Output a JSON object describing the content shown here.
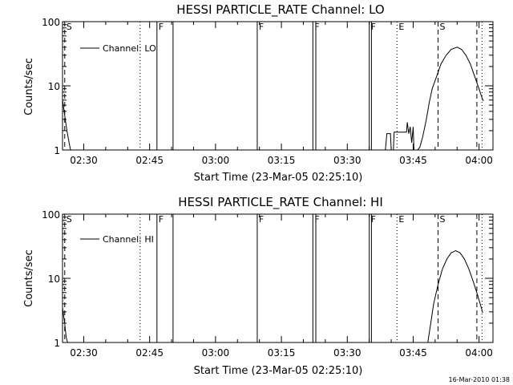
{
  "footer": {
    "timestamp": "16-Mar-2010 01:38"
  },
  "chart_data": [
    {
      "type": "line",
      "title": "HESSI PARTICLE_RATE Channel: LO",
      "xlabel": "Start Time (23-Mar-05 02:25:10)",
      "ylabel": "Counts/sec",
      "yscale": "log",
      "ylim": [
        1,
        100
      ],
      "xlim": [
        "02:25:10",
        "04:03:10"
      ],
      "x_ticks": [
        "02:30",
        "02:45",
        "03:00",
        "03:15",
        "03:30",
        "03:45",
        "04:00"
      ],
      "y_ticks": [
        "1",
        "10",
        "100"
      ],
      "legend": {
        "label": "Channel: LO",
        "position": "top-left"
      },
      "markers": [
        {
          "label": "S",
          "time": "02:25:40",
          "style": "dashed"
        },
        {
          "label": "",
          "time": "02:42:50",
          "style": "dotted"
        },
        {
          "label": "F",
          "time": "02:46:40",
          "style": "solid"
        },
        {
          "label": "",
          "time": "02:50:20",
          "style": "solid"
        },
        {
          "label": "F",
          "time": "03:09:30",
          "style": "solid"
        },
        {
          "label": "F",
          "time": "03:22:10",
          "style": "solid"
        },
        {
          "label": "",
          "time": "03:22:50",
          "style": "solid"
        },
        {
          "label": "F",
          "time": "03:35:00",
          "style": "solid"
        },
        {
          "label": "",
          "time": "03:35:30",
          "style": "solid"
        },
        {
          "label": "E",
          "time": "03:41:20",
          "style": "dotted"
        },
        {
          "label": "S",
          "time": "03:50:40",
          "style": "dashed"
        },
        {
          "label": "",
          "time": "03:59:30",
          "style": "dashed"
        },
        {
          "label": "",
          "time": "04:00:40",
          "style": "dotted"
        }
      ],
      "series": [
        {
          "segments": [
            [
              [
                "02:25:10",
                6
              ],
              [
                "02:25:40",
                3.5
              ],
              [
                "02:26:10",
                2
              ],
              [
                "02:26:40",
                1.3
              ],
              [
                "02:27:00",
                1
              ]
            ],
            [
              [
                "03:38:40",
                1
              ],
              [
                "03:39:00",
                1.8
              ],
              [
                "03:39:50",
                1.8
              ],
              [
                "03:40:00",
                1
              ],
              [
                "03:40:30",
                1
              ],
              [
                "03:40:40",
                1.9
              ],
              [
                "03:43:30",
                1.9
              ],
              [
                "03:43:40",
                2.7
              ],
              [
                "03:44:00",
                1.8
              ],
              [
                "03:44:20",
                2.3
              ],
              [
                "03:44:40",
                1.3
              ],
              [
                "03:45:00",
                2.3
              ],
              [
                "03:45:10",
                1
              ],
              [
                "03:46:00",
                1
              ],
              [
                "03:46:30",
                1.1
              ],
              [
                "03:47:10",
                1.6
              ],
              [
                "03:48:00",
                3
              ],
              [
                "03:48:40",
                5.5
              ],
              [
                "03:49:20",
                9
              ],
              [
                "03:50:20",
                14
              ],
              [
                "03:51:20",
                22
              ],
              [
                "03:52:30",
                30
              ],
              [
                "03:53:40",
                37
              ],
              [
                "03:55:00",
                40
              ],
              [
                "03:56:00",
                37
              ],
              [
                "03:57:00",
                30
              ],
              [
                "03:58:00",
                22
              ],
              [
                "03:59:00",
                14
              ],
              [
                "04:00:00",
                9
              ],
              [
                "04:00:40",
                6.5
              ],
              [
                "04:01:00",
                5.8
              ]
            ]
          ]
        }
      ]
    },
    {
      "type": "line",
      "title": "HESSI PARTICLE_RATE Channel: HI",
      "xlabel": "Start Time (23-Mar-05 02:25:10)",
      "ylabel": "Counts/sec",
      "yscale": "log",
      "ylim": [
        1,
        100
      ],
      "xlim": [
        "02:25:10",
        "04:03:10"
      ],
      "x_ticks": [
        "02:30",
        "02:45",
        "03:00",
        "03:15",
        "03:30",
        "03:45",
        "04:00"
      ],
      "y_ticks": [
        "1",
        "10",
        "100"
      ],
      "legend": {
        "label": "Channel: HI",
        "position": "top-left"
      },
      "markers": [
        {
          "label": "S",
          "time": "02:25:40",
          "style": "dashed"
        },
        {
          "label": "",
          "time": "02:42:50",
          "style": "dotted"
        },
        {
          "label": "F",
          "time": "02:46:40",
          "style": "solid"
        },
        {
          "label": "",
          "time": "02:50:20",
          "style": "solid"
        },
        {
          "label": "F",
          "time": "03:09:30",
          "style": "solid"
        },
        {
          "label": "F",
          "time": "03:22:10",
          "style": "solid"
        },
        {
          "label": "",
          "time": "03:22:50",
          "style": "solid"
        },
        {
          "label": "F",
          "time": "03:35:00",
          "style": "solid"
        },
        {
          "label": "",
          "time": "03:35:30",
          "style": "solid"
        },
        {
          "label": "E",
          "time": "03:41:20",
          "style": "dotted"
        },
        {
          "label": "S",
          "time": "03:50:40",
          "style": "dashed"
        },
        {
          "label": "",
          "time": "03:59:30",
          "style": "dashed"
        },
        {
          "label": "",
          "time": "04:00:40",
          "style": "dotted"
        }
      ],
      "series": [
        {
          "segments": [
            [
              [
                "02:25:10",
                3.5
              ],
              [
                "02:25:40",
                2
              ],
              [
                "02:26:00",
                1.2
              ],
              [
                "02:26:20",
                1
              ]
            ],
            [
              [
                "03:48:20",
                1
              ],
              [
                "03:49:00",
                2
              ],
              [
                "03:49:40",
                4
              ],
              [
                "03:50:40",
                8
              ],
              [
                "03:51:40",
                14
              ],
              [
                "03:52:40",
                20
              ],
              [
                "03:53:40",
                25
              ],
              [
                "03:54:40",
                27
              ],
              [
                "03:55:40",
                25
              ],
              [
                "03:56:40",
                20
              ],
              [
                "03:57:40",
                14
              ],
              [
                "03:58:40",
                9
              ],
              [
                "03:59:40",
                5.5
              ],
              [
                "04:00:30",
                3.5
              ],
              [
                "04:00:50",
                2.9
              ]
            ]
          ]
        }
      ]
    }
  ]
}
